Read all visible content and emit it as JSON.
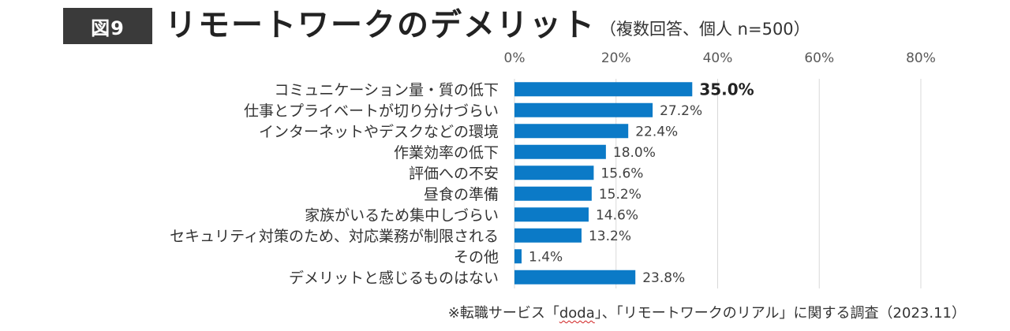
{
  "header": {
    "figure_badge": "図9",
    "title": "リモートワークのデメリット",
    "subtitle": "（複数回答、個人 n=500）"
  },
  "source": {
    "prefix": "※転職サービス「",
    "brand": "doda",
    "suffix": "」、「リモートワークのリアル」に関する調査（2023.11）"
  },
  "colors": {
    "bar": "#0b7ac7",
    "grid": "#d9d9d9",
    "badge_bg": "#3a3a3a"
  },
  "chart_data": {
    "type": "bar",
    "orientation": "horizontal",
    "title": "リモートワークのデメリット",
    "subtitle": "（複数回答、個人 n=500）",
    "xlim": [
      0,
      80
    ],
    "x_ticks": [
      0,
      20,
      40,
      60,
      80
    ],
    "x_tick_labels": [
      "0%",
      "20%",
      "40%",
      "60%",
      "80%"
    ],
    "grid": true,
    "categories": [
      "コミュニケーション量・質の低下",
      "仕事とプライベートが切り分けづらい",
      "インターネットやデスクなどの環境",
      "作業効率の低下",
      "評価への不安",
      "昼食の準備",
      "家族がいるため集中しづらい",
      "セキュリティ対策のため、対応業務が制限される",
      "その他",
      "デメリットと感じるものはない"
    ],
    "values": [
      35.0,
      27.2,
      22.4,
      18.0,
      15.6,
      15.2,
      14.6,
      13.2,
      1.4,
      23.8
    ],
    "value_labels": [
      "35.0%",
      "27.2%",
      "22.4%",
      "18.0%",
      "15.6%",
      "15.2%",
      "14.6%",
      "13.2%",
      "1.4%",
      "23.8%"
    ],
    "highlight_index": 0
  }
}
